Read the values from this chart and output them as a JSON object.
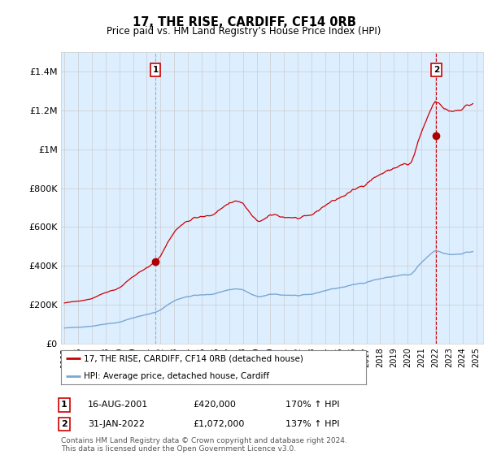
{
  "title": "17, THE RISE, CARDIFF, CF14 0RB",
  "subtitle": "Price paid vs. HM Land Registry’s House Price Index (HPI)",
  "ylim": [
    0,
    1500000
  ],
  "yticks": [
    0,
    200000,
    400000,
    600000,
    800000,
    1000000,
    1200000,
    1400000
  ],
  "ytick_labels": [
    "£0",
    "£200K",
    "£400K",
    "£600K",
    "£800K",
    "£1M",
    "£1.2M",
    "£1.4M"
  ],
  "legend_line1": "17, THE RISE, CARDIFF, CF14 0RB (detached house)",
  "legend_line2": "HPI: Average price, detached house, Cardiff",
  "sale1_label": "1",
  "sale1_date": "16-AUG-2001",
  "sale1_price": "£420,000",
  "sale1_hpi": "170% ↑ HPI",
  "sale2_label": "2",
  "sale2_date": "31-JAN-2022",
  "sale2_price": "£1,072,000",
  "sale2_hpi": "137% ↑ HPI",
  "footnote": "Contains HM Land Registry data © Crown copyright and database right 2024.\nThis data is licensed under the Open Government Licence v3.0.",
  "line_color_red": "#cc0000",
  "line_color_blue": "#7aa7d4",
  "marker_color": "#aa0000",
  "vline1_color": "#aaaaaa",
  "vline2_color": "#cc0000",
  "grid_color": "#cccccc",
  "bg_color": "#ffffff",
  "plot_bg_color": "#ddeeff",
  "sale1_x": 2001.63,
  "sale1_y": 420000,
  "sale2_x": 2022.08,
  "sale2_y": 1072000,
  "xlim_start": 1994.75,
  "xlim_end": 2025.5
}
